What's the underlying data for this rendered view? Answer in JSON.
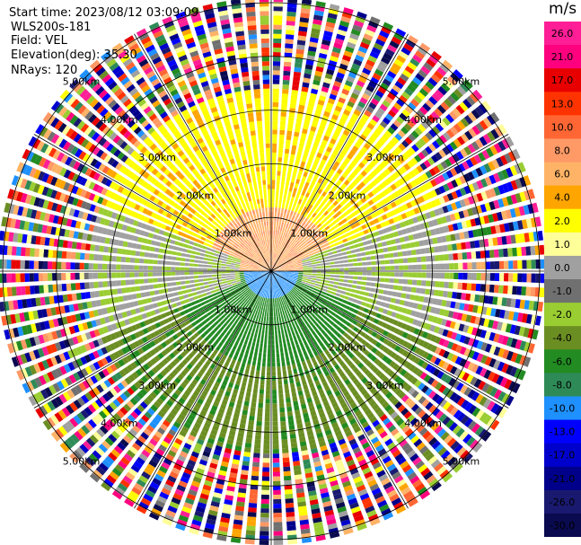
{
  "header": {
    "start_time": "Start time: 2023/08/12 03:09:09",
    "instrument": "WLS200s-181",
    "field": "Field: VEL",
    "elevation": "Elevation(deg): 35.30",
    "nrays": "NRays: 120"
  },
  "colorbar": {
    "unit": "m/s",
    "ticks": [
      "26.0",
      "21.0",
      "17.0",
      "13.0",
      "10.0",
      "8.0",
      "6.0",
      "4.0",
      "2.0",
      "1.0",
      "0.0",
      "-1.0",
      "-2.0",
      "-4.0",
      "-6.0",
      "-8.0",
      "-10.0",
      "-13.0",
      "-17.0",
      "-21.0",
      "-26.0",
      "-30.0"
    ],
    "colors": [
      "#ff1e96",
      "#ff007f",
      "#e80000",
      "#ff3300",
      "#ff6633",
      "#ff9966",
      "#ffb366",
      "#ffa500",
      "#ffff00",
      "#ffff99",
      "#a0a0a0",
      "#707070",
      "#9acd32",
      "#6b8e23",
      "#228b22",
      "#2e8b57",
      "#1e90ff",
      "#0000ff",
      "#0000cd",
      "#00008b",
      "#191970",
      "#0a0a50"
    ]
  },
  "chart_data": {
    "type": "heatmap",
    "subtype": "polar PPI scan",
    "field": "VEL",
    "units": "m/s",
    "nrays": 120,
    "range_rings_km": [
      1.0,
      2.0,
      3.0,
      4.0,
      5.0
    ],
    "ring_labels": [
      "1.00km",
      "2.00km",
      "3.00km",
      "4.00km",
      "5.00km"
    ],
    "max_range_km": 5.1,
    "radial_lines_deg": [
      0,
      30,
      60,
      90,
      120,
      150,
      180,
      210,
      240,
      270,
      300,
      330
    ],
    "velocity_pattern": {
      "north_half_near": 6.0,
      "north_half_mid": 2.0,
      "east_west_sectors": 0.0,
      "south_half_near": -8.0,
      "south_half_mid": -4.0,
      "south_half_far": -2.0,
      "far_range": "aliased noise"
    }
  }
}
